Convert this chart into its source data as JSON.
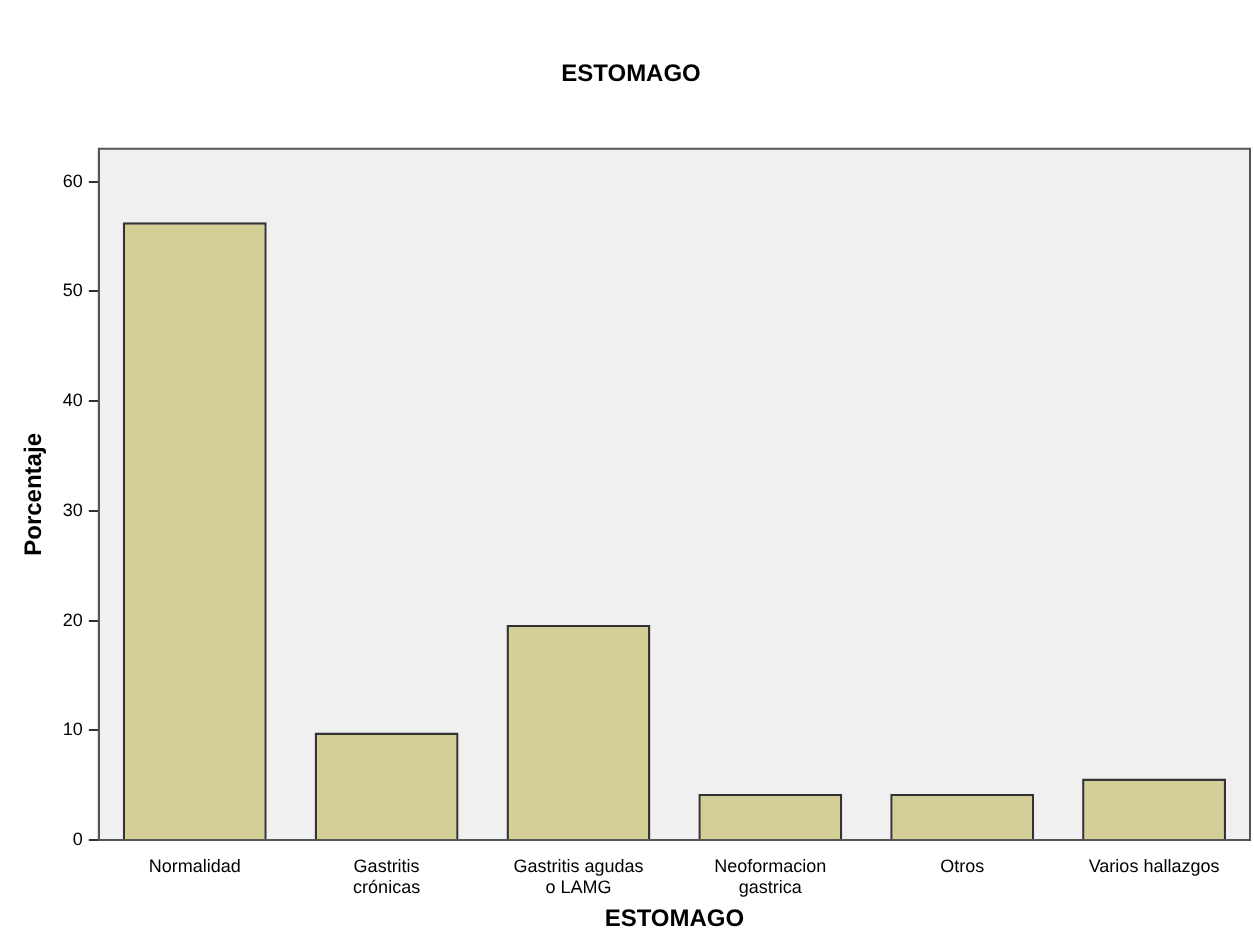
{
  "chart_data": {
    "type": "bar",
    "title": "ESTOMAGO",
    "xlabel": "ESTOMAGO",
    "ylabel": "Porcentaje",
    "categories": [
      "Normalidad",
      "Gastritis crónicas",
      "Gastritis agudas o LAMG",
      "Neoformacion gastrica",
      "Otros",
      "Varios hallazgos"
    ],
    "values": [
      56.3,
      9.8,
      19.6,
      4.2,
      4.2,
      5.6
    ],
    "color": "#d3cf96",
    "ylim": [
      0,
      63
    ],
    "yticks": [
      0,
      10,
      20,
      30,
      40,
      50,
      60
    ],
    "grid": false,
    "legend": false
  }
}
